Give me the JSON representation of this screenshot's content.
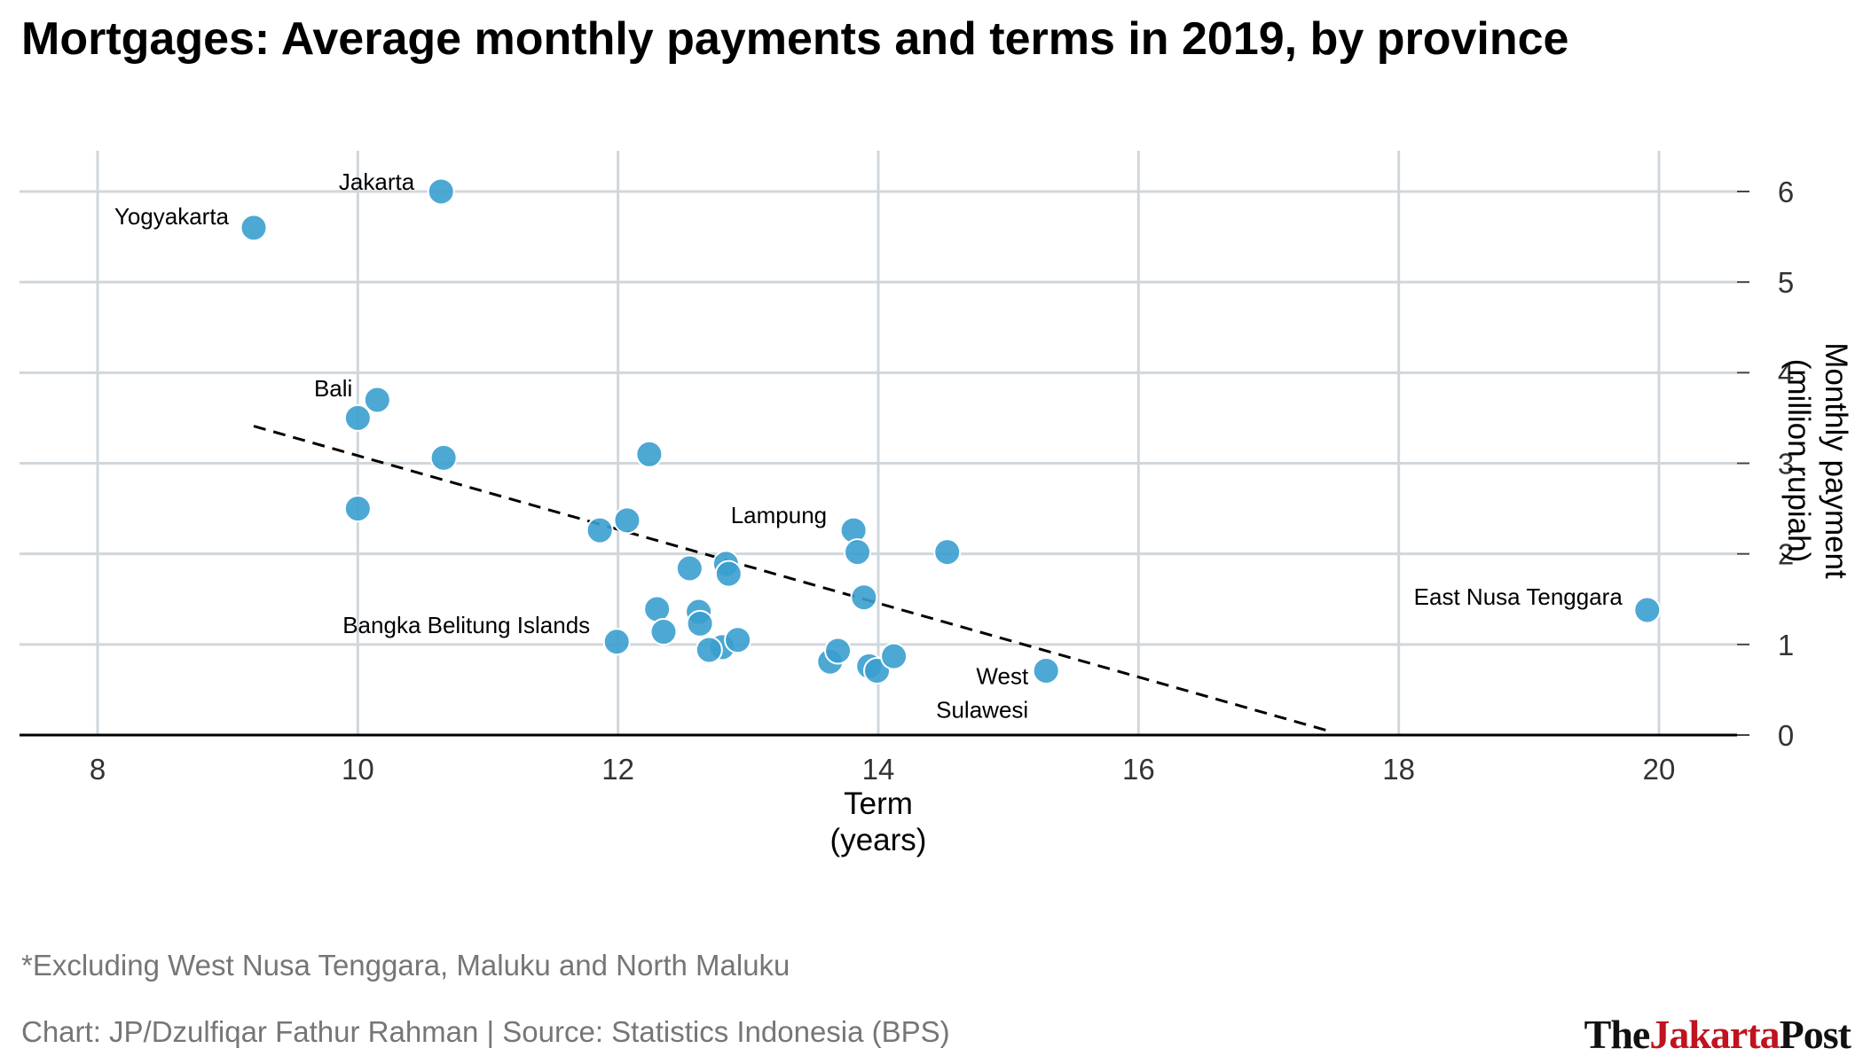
{
  "title": "Mortgages: Average monthly payments and terms in 2019, by province",
  "footnote": "*Excluding West Nusa Tenggara, Maluku and North Maluku",
  "credit": "Chart: JP/Dzulfiqar Fathur Rahman | Source: Statistics Indonesia (BPS)",
  "logo": {
    "part1": "The",
    "part2": "Jakarta",
    "part3": "Post"
  },
  "colors": {
    "point": "#3a9fcf",
    "grid": "#d0d7dc",
    "trend": "#000000"
  },
  "chart_data": {
    "type": "scatter",
    "title": "Mortgages: Average monthly payments and terms in 2019, by province",
    "xlabel": [
      "Term",
      "(years)"
    ],
    "ylabel": [
      "Monthly payment",
      "(million rupiah)"
    ],
    "xlim": [
      7.4,
      20.6
    ],
    "ylim": [
      0,
      6.45
    ],
    "xticks": [
      8,
      10,
      12,
      14,
      16,
      18,
      20
    ],
    "yticks": [
      0,
      1,
      2,
      3,
      4,
      5,
      6
    ],
    "y_axis_position": "right",
    "grid": true,
    "points": [
      {
        "x": 10.64,
        "y": 6.0,
        "label": "Jakarta"
      },
      {
        "x": 9.2,
        "y": 5.6,
        "label": "Yogyakarta"
      },
      {
        "x": 10.15,
        "y": 3.7,
        "label": "Bali"
      },
      {
        "x": 10.0,
        "y": 3.5
      },
      {
        "x": 10.66,
        "y": 3.06
      },
      {
        "x": 12.24,
        "y": 3.1
      },
      {
        "x": 10.0,
        "y": 2.5
      },
      {
        "x": 11.86,
        "y": 2.26
      },
      {
        "x": 12.07,
        "y": 2.37
      },
      {
        "x": 12.55,
        "y": 1.84
      },
      {
        "x": 12.83,
        "y": 1.89
      },
      {
        "x": 12.85,
        "y": 1.78
      },
      {
        "x": 13.81,
        "y": 2.26,
        "label": "Lampung"
      },
      {
        "x": 13.84,
        "y": 2.02
      },
      {
        "x": 14.53,
        "y": 2.02
      },
      {
        "x": 13.89,
        "y": 1.52
      },
      {
        "x": 12.3,
        "y": 1.39
      },
      {
        "x": 12.62,
        "y": 1.36
      },
      {
        "x": 12.63,
        "y": 1.23
      },
      {
        "x": 12.35,
        "y": 1.14
      },
      {
        "x": 11.99,
        "y": 1.03,
        "label": "Bangka Belitung Islands"
      },
      {
        "x": 12.8,
        "y": 0.97
      },
      {
        "x": 12.7,
        "y": 0.94
      },
      {
        "x": 12.92,
        "y": 1.05
      },
      {
        "x": 13.63,
        "y": 0.81
      },
      {
        "x": 13.69,
        "y": 0.93
      },
      {
        "x": 13.93,
        "y": 0.76
      },
      {
        "x": 13.99,
        "y": 0.71
      },
      {
        "x": 14.12,
        "y": 0.87
      },
      {
        "x": 15.29,
        "y": 0.71,
        "label": [
          "West",
          "Sulawesi"
        ]
      },
      {
        "x": 19.91,
        "y": 1.38,
        "label": "East Nusa Tenggara"
      }
    ],
    "trendline": {
      "x": [
        9.2,
        17.45
      ],
      "y": [
        3.41,
        0.05
      ],
      "style": "dashed"
    }
  }
}
